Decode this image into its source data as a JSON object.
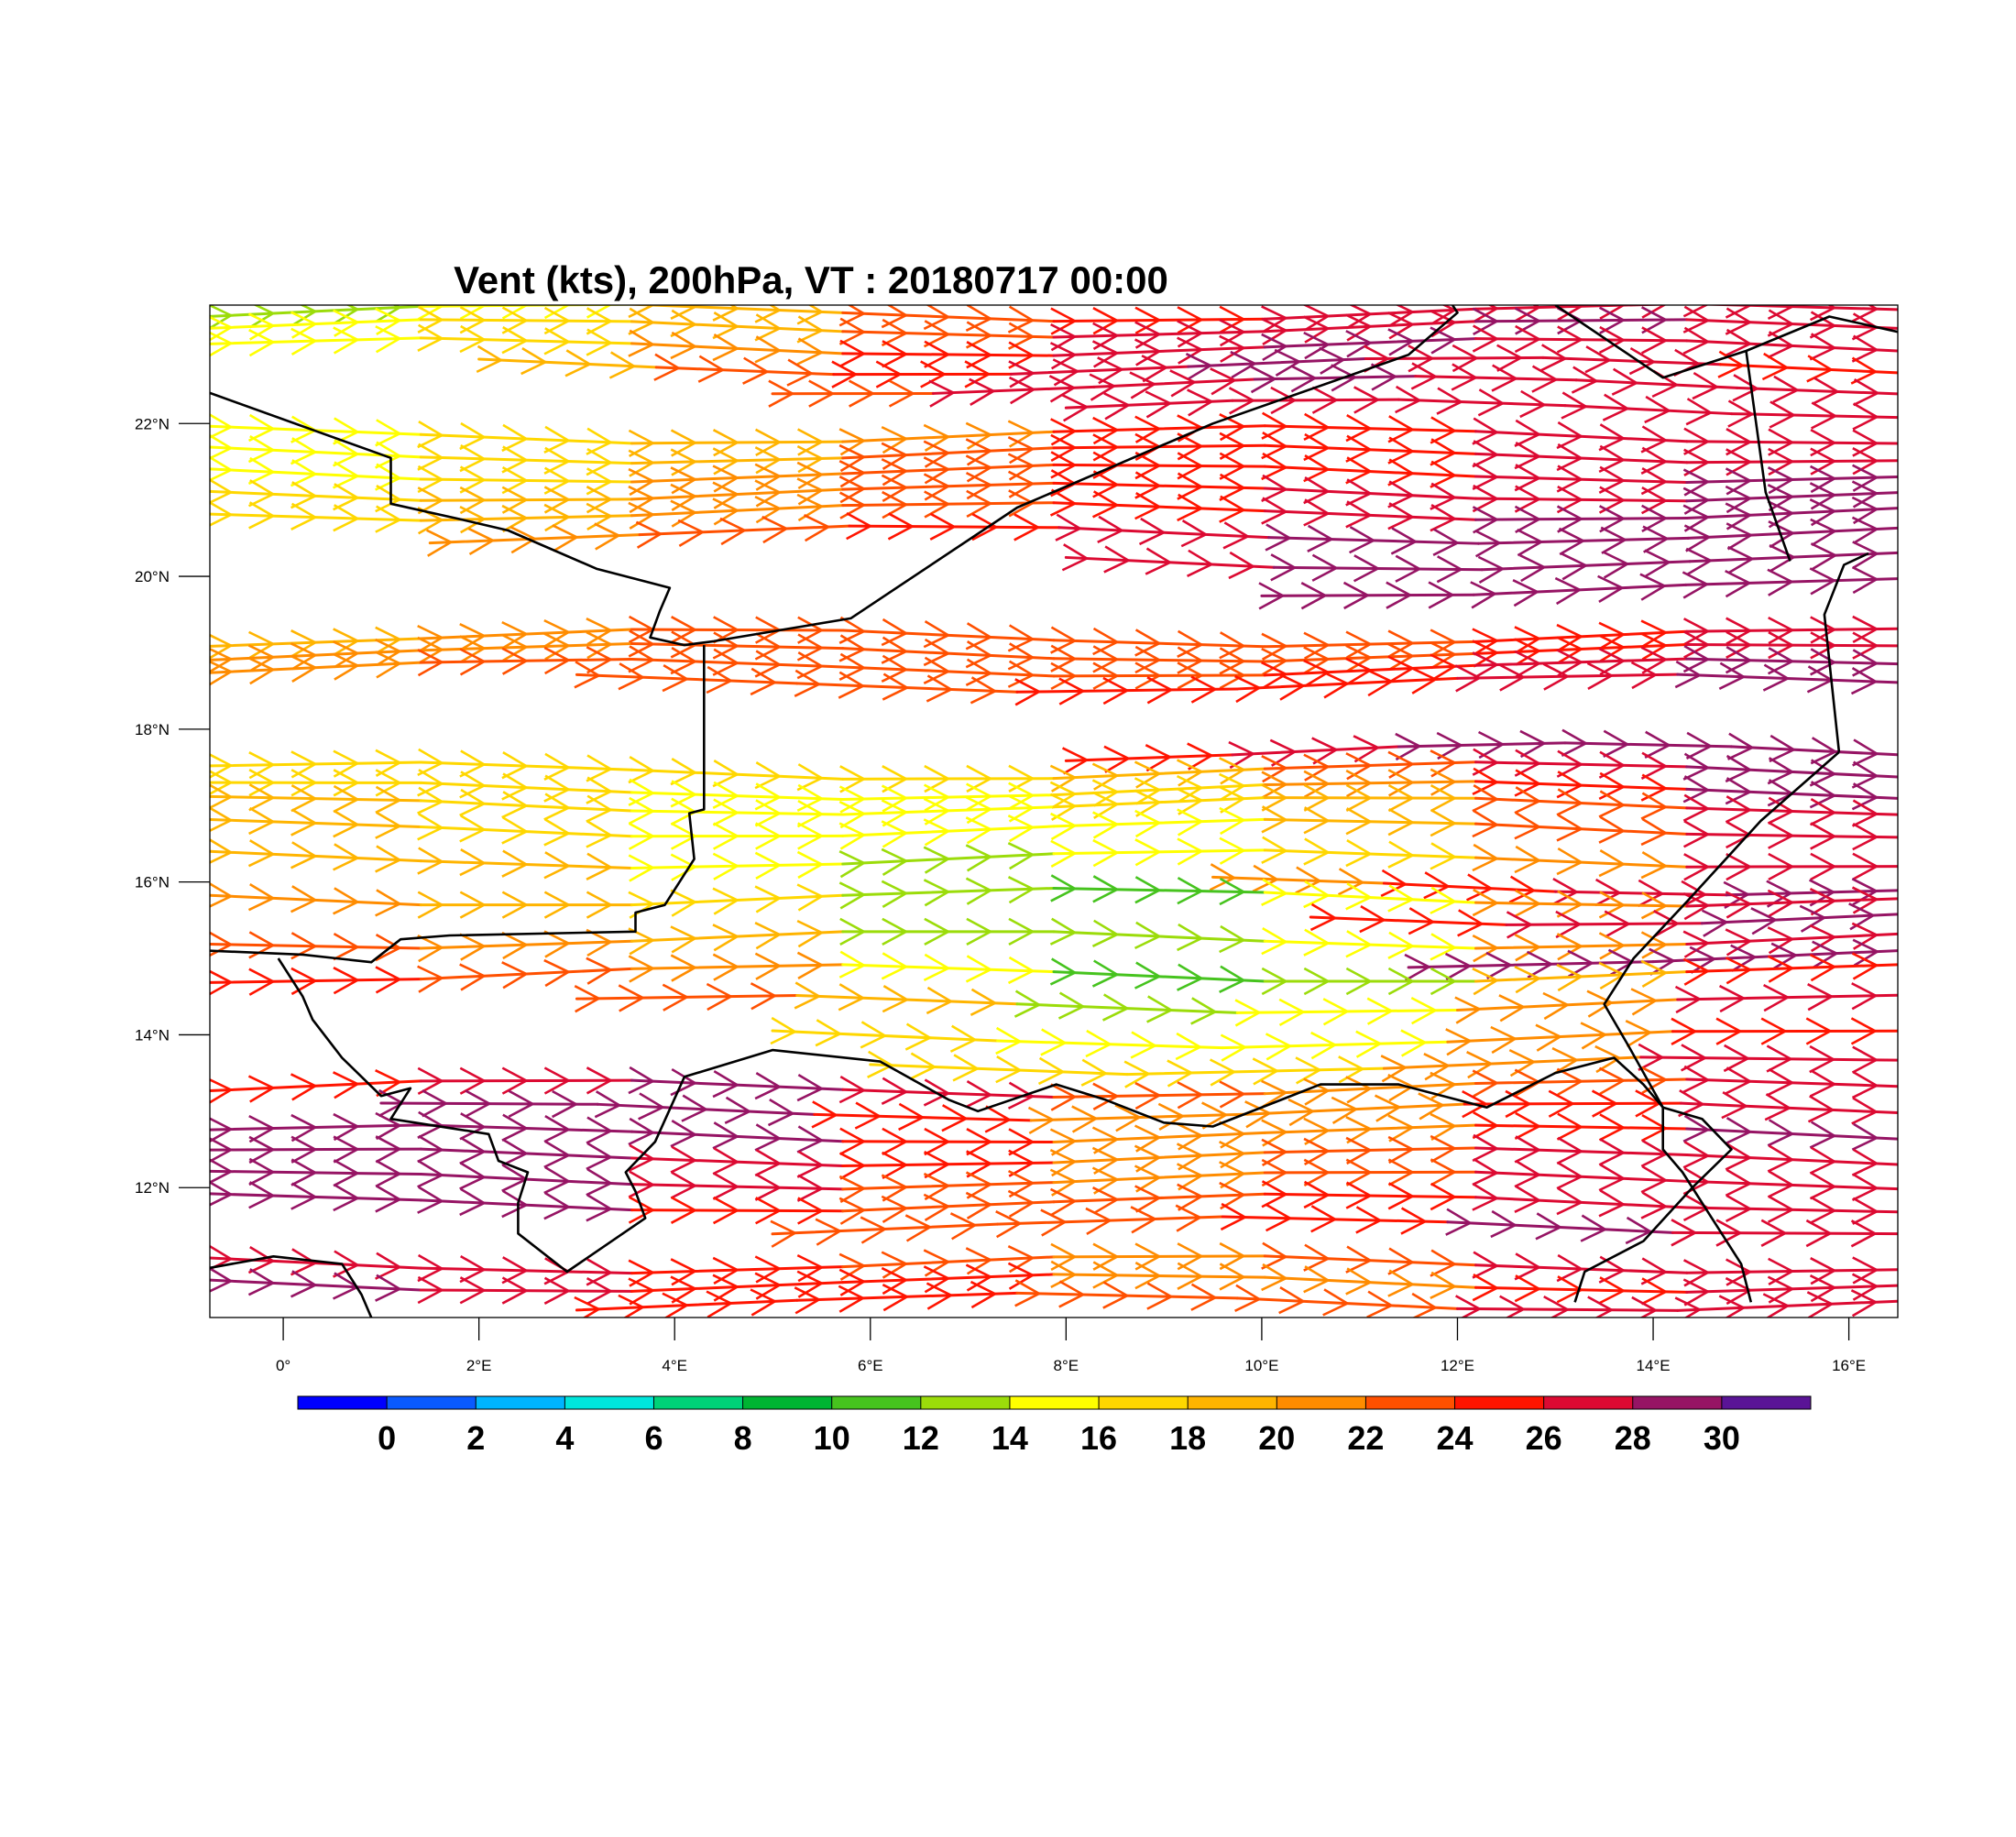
{
  "title": "Vent (kts), 200hPa, VT : 20180717  00:00",
  "map": {
    "lon_range": [
      -0.75,
      16.5
    ],
    "lat_range": [
      10.3,
      23.55
    ],
    "lon_ticks": [
      {
        "value": 0,
        "label": "0°"
      },
      {
        "value": 2,
        "label": "2°E"
      },
      {
        "value": 4,
        "label": "4°E"
      },
      {
        "value": 6,
        "label": "6°E"
      },
      {
        "value": 8,
        "label": "8°E"
      },
      {
        "value": 10,
        "label": "10°E"
      },
      {
        "value": 12,
        "label": "12°E"
      },
      {
        "value": 14,
        "label": "14°E"
      },
      {
        "value": 16,
        "label": "16°E"
      }
    ],
    "lat_ticks": [
      {
        "value": 22,
        "label": "22°N"
      },
      {
        "value": 20,
        "label": "20°N"
      },
      {
        "value": 18,
        "label": "18°N"
      },
      {
        "value": 16,
        "label": "16°N"
      },
      {
        "value": 14,
        "label": "14°N"
      },
      {
        "value": 12,
        "label": "12°N"
      }
    ],
    "background": "#ffffff",
    "border_color": "#000000"
  },
  "colorbar": {
    "colors": [
      "#0000ff",
      "#0a5aff",
      "#00b4ff",
      "#00e6dc",
      "#00d278",
      "#00b432",
      "#46c31e",
      "#9bdc0a",
      "#ffff00",
      "#ffd700",
      "#ffb400",
      "#ff8c00",
      "#ff5000",
      "#ff1400",
      "#dc0a32",
      "#961464",
      "#5a1496"
    ],
    "labels": [
      "0",
      "2",
      "4",
      "6",
      "8",
      "10",
      "12",
      "14",
      "16",
      "18",
      "20",
      "22",
      "24",
      "26",
      "28",
      "30"
    ]
  },
  "wind_field": {
    "units": "kts",
    "level": "200hPa",
    "streamlines": [
      {
        "lat": 23.45,
        "lon_start": -0.75,
        "speeds": [
          14,
          16,
          18,
          22,
          26,
          28,
          29,
          30,
          29
        ]
      },
      {
        "lat": 23.25,
        "lon_start": -0.75,
        "speeds": [
          16,
          17,
          19,
          23,
          27,
          29,
          30,
          30,
          29
        ]
      },
      {
        "lat": 23.0,
        "lon_start": -0.75,
        "speeds": [
          16,
          18,
          20,
          24,
          28,
          30,
          30,
          29,
          28
        ]
      },
      {
        "lat": 22.75,
        "lon_start": 2.0,
        "speeds": [
          19,
          22,
          26,
          29,
          30,
          30,
          29,
          28,
          27
        ]
      },
      {
        "lat": 22.5,
        "lon_start": 5.0,
        "speeds": [
          24,
          27,
          29,
          30,
          30,
          29,
          28,
          28
        ]
      },
      {
        "lat": 22.2,
        "lon_start": 8.0,
        "speeds": [
          27,
          29,
          30,
          29,
          28,
          28
        ]
      },
      {
        "lat": 21.85,
        "lon_start": -0.75,
        "speeds": [
          16,
          17,
          19,
          22,
          25,
          27,
          28,
          29,
          30
        ]
      },
      {
        "lat": 21.6,
        "lon_start": -0.75,
        "speeds": [
          16,
          18,
          20,
          23,
          26,
          27,
          28,
          29,
          30
        ]
      },
      {
        "lat": 21.35,
        "lon_start": -0.75,
        "speeds": [
          17,
          18,
          21,
          24,
          26,
          27,
          28,
          30,
          31
        ]
      },
      {
        "lat": 21.1,
        "lon_start": -0.75,
        "speeds": [
          17,
          19,
          22,
          24,
          26,
          27,
          29,
          30,
          31
        ]
      },
      {
        "lat": 20.85,
        "lon_start": -0.75,
        "speeds": [
          18,
          20,
          22,
          24,
          26,
          27,
          29,
          31,
          31
        ]
      },
      {
        "lat": 20.55,
        "lon_start": 1.5,
        "speeds": [
          21,
          23,
          25,
          27,
          29,
          31,
          31,
          31
        ]
      },
      {
        "lat": 20.2,
        "lon_start": 8.0,
        "speeds": [
          27,
          29,
          31,
          31,
          31
        ]
      },
      {
        "lat": 19.85,
        "lon_start": 10.0,
        "speeds": [
          29,
          31,
          31,
          31
        ]
      },
      {
        "lat": 19.2,
        "lon_start": -0.75,
        "speeds": [
          20,
          22,
          24,
          25,
          25,
          25,
          26,
          28,
          30
        ]
      },
      {
        "lat": 19.0,
        "lon_start": -0.75,
        "speeds": [
          21,
          23,
          24,
          25,
          25,
          25,
          26,
          28,
          31
        ]
      },
      {
        "lat": 18.8,
        "lon_start": -0.75,
        "speeds": [
          22,
          24,
          25,
          25,
          25,
          26,
          27,
          29,
          31
        ]
      },
      {
        "lat": 18.6,
        "lon_start": 3.0,
        "speeds": [
          25,
          25,
          26,
          27,
          28,
          30,
          31
        ]
      },
      {
        "lat": 17.7,
        "lon_start": 8.0,
        "speeds": [
          25,
          27,
          29,
          31,
          31,
          31
        ]
      },
      {
        "lat": 17.45,
        "lon_start": -0.75,
        "speeds": [
          19,
          19,
          18,
          18,
          20,
          23,
          27,
          30,
          31
        ]
      },
      {
        "lat": 17.2,
        "lon_start": -0.75,
        "speeds": [
          20,
          19,
          18,
          17,
          18,
          21,
          25,
          29,
          31
        ]
      },
      {
        "lat": 17.0,
        "lon_start": -0.75,
        "speeds": [
          21,
          19,
          17,
          17,
          17,
          19,
          23,
          28,
          31
        ]
      },
      {
        "lat": 16.7,
        "lon_start": -0.75,
        "speeds": [
          22,
          20,
          18,
          16,
          16,
          18,
          22,
          27,
          31
        ]
      },
      {
        "lat": 16.3,
        "lon_start": -0.75,
        "speeds": [
          22,
          21,
          19,
          16,
          15,
          17,
          21,
          26,
          31
        ]
      },
      {
        "lat": 15.95,
        "lon_start": 9.5,
        "speeds": [
          22,
          25,
          28,
          31,
          31
        ]
      },
      {
        "lat": 15.8,
        "lon_start": -0.75,
        "speeds": [
          23,
          22,
          20,
          17,
          14,
          13,
          19,
          25,
          31
        ]
      },
      {
        "lat": 15.55,
        "lon_start": 10.5,
        "speeds": [
          25,
          28,
          31,
          31
        ]
      },
      {
        "lat": 15.25,
        "lon_start": -0.75,
        "speeds": [
          25,
          24,
          22,
          18,
          13,
          15,
          20,
          26,
          31
        ]
      },
      {
        "lat": 15.0,
        "lon_start": 11.5,
        "speeds": [
          29,
          31,
          31
        ]
      },
      {
        "lat": 14.8,
        "lon_start": -0.75,
        "speeds": [
          26,
          26,
          24,
          20,
          14,
          12,
          18,
          24,
          30
        ]
      },
      {
        "lat": 14.4,
        "lon_start": 3.0,
        "speeds": [
          27,
          23,
          17,
          14,
          20,
          26,
          30
        ]
      },
      {
        "lat": 13.95,
        "lon_start": 5.0,
        "speeds": [
          20,
          17,
          15,
          19,
          25,
          30
        ]
      },
      {
        "lat": 13.6,
        "lon_start": 6.0,
        "speeds": [
          21,
          18,
          20,
          26,
          30
        ]
      },
      {
        "lat": 13.3,
        "lon_start": -0.75,
        "speeds": [
          26,
          28,
          30,
          30,
          26,
          22,
          22,
          26,
          30
        ]
      },
      {
        "lat": 13.0,
        "lon_start": 1.0,
        "speeds": [
          30,
          31,
          29,
          25,
          22,
          24,
          28,
          31
        ]
      },
      {
        "lat": 12.7,
        "lon_start": -0.75,
        "speeds": [
          29,
          31,
          31,
          29,
          25,
          22,
          25,
          29,
          31
        ]
      },
      {
        "lat": 12.4,
        "lon_start": -0.75,
        "speeds": [
          30,
          31,
          31,
          28,
          24,
          22,
          26,
          30,
          27
        ]
      },
      {
        "lat": 12.1,
        "lon_start": -0.75,
        "speeds": [
          31,
          31,
          30,
          27,
          24,
          23,
          27,
          31,
          26
        ]
      },
      {
        "lat": 11.8,
        "lon_start": -0.75,
        "speeds": [
          31,
          31,
          29,
          26,
          24,
          24,
          28,
          31,
          26
        ]
      },
      {
        "lat": 11.5,
        "lon_start": 5.0,
        "speeds": [
          25,
          23,
          25,
          29,
          31,
          26
        ]
      },
      {
        "lat": 11.0,
        "lon_start": -0.75,
        "speeds": [
          30,
          29,
          27,
          26,
          24,
          23,
          26,
          30,
          27
        ]
      },
      {
        "lat": 10.75,
        "lon_start": -0.75,
        "speeds": [
          31,
          30,
          28,
          27,
          25,
          22,
          25,
          29,
          28
        ]
      },
      {
        "lat": 10.5,
        "lon_start": 3.0,
        "speeds": [
          28,
          27,
          25,
          23,
          26,
          30,
          29
        ]
      }
    ]
  }
}
